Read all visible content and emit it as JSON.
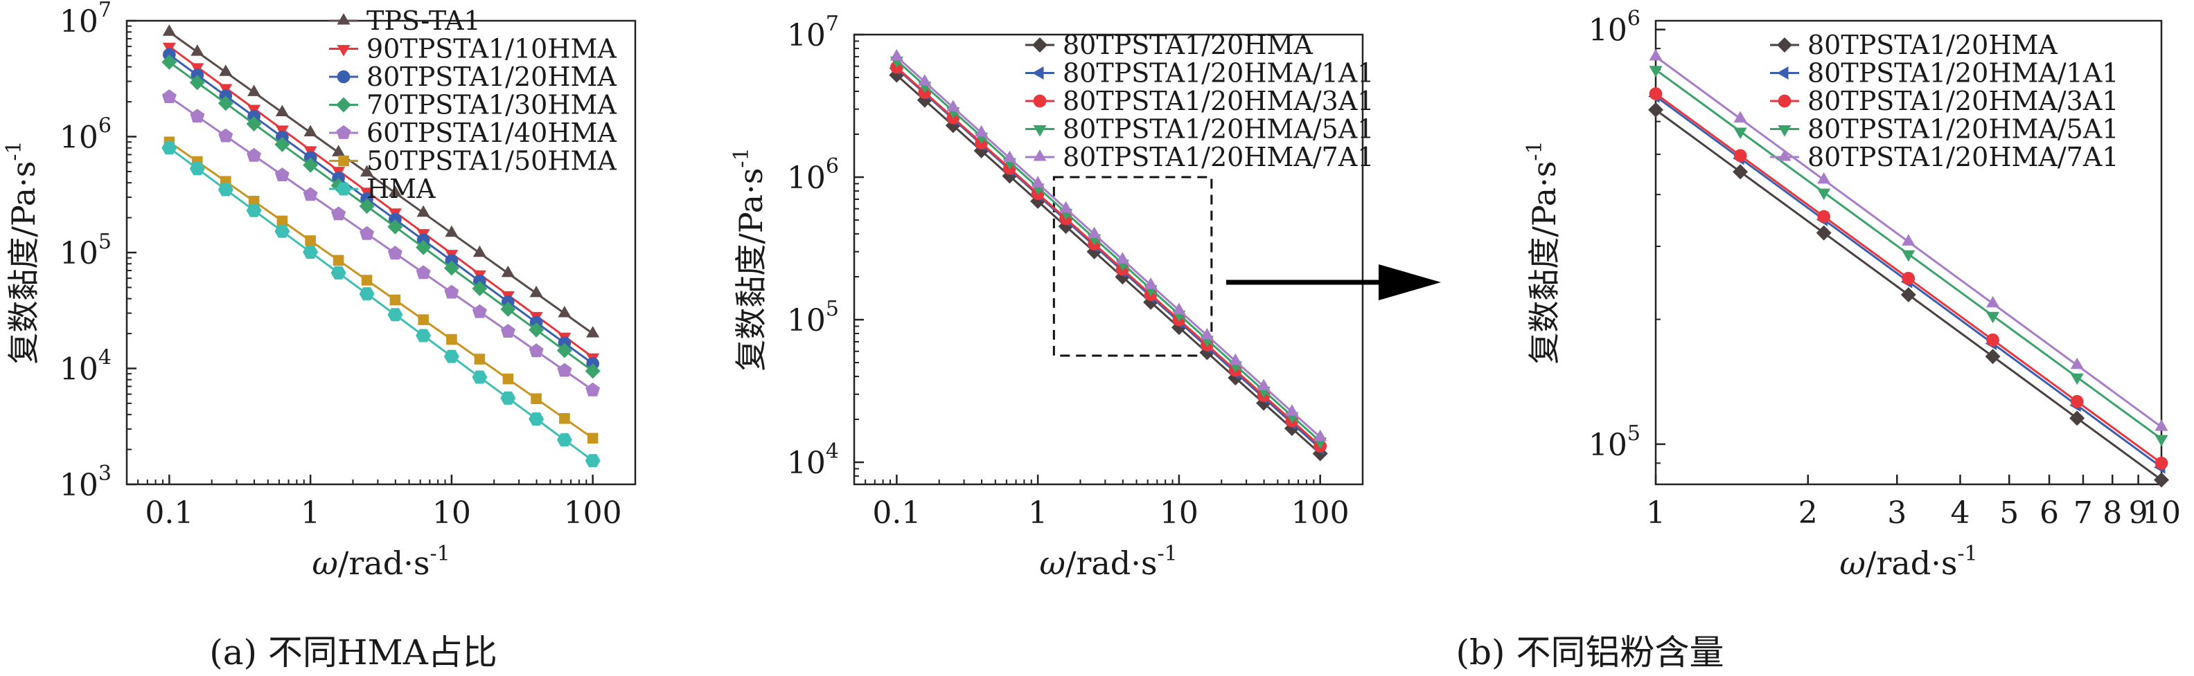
{
  "captions": {
    "a": "(a) 不同HMA占比",
    "b": "(b) 不同铝粉含量"
  },
  "chart_data": [
    {
      "id": "a",
      "type": "line",
      "xscale": "log",
      "yscale": "log",
      "xlim": [
        0.05,
        200
      ],
      "ylim": [
        1000,
        10000000
      ],
      "xticks": [
        0.1,
        1,
        10,
        100
      ],
      "xtick_labels": [
        "0.1",
        "1",
        "10",
        "100"
      ],
      "yticks": [
        1000,
        10000,
        100000,
        1000000,
        10000000
      ],
      "ytick_bases": [
        "10",
        "10",
        "10",
        "10",
        "10"
      ],
      "ytick_exps": [
        "3",
        "4",
        "5",
        "6",
        "7"
      ],
      "xlabel_symbol": "ω",
      "xlabel_rest": "/rad·s",
      "xlabel_exp": "-1",
      "ylabel": "复数黏度/Pa·s",
      "ylabel_exp": "-1",
      "legend_position": "top-right",
      "x": [
        0.1,
        0.158,
        0.251,
        0.398,
        0.631,
        1,
        1.58,
        2.51,
        3.98,
        6.31,
        10,
        15.8,
        25.1,
        39.8,
        63.1,
        100
      ],
      "series": [
        {
          "name": "TPS-TA1",
          "color": "#5a4a4a",
          "marker": "triangle-up",
          "start": 8000000,
          "end": 20000
        },
        {
          "name": "90TPSTA1/10HMA",
          "color": "#e8363c",
          "marker": "triangle-down",
          "start": 6000000,
          "end": 12500
        },
        {
          "name": "80TPSTA1/20HMA",
          "color": "#3a5fb0",
          "marker": "circle",
          "start": 5100000,
          "end": 11000
        },
        {
          "name": "70TPSTA1/30HMA",
          "color": "#3aa36a",
          "marker": "diamond",
          "start": 4400000,
          "end": 9500
        },
        {
          "name": "60TPSTA1/40HMA",
          "color": "#a87cc8",
          "marker": "pentagon",
          "start": 2200000,
          "end": 6500
        },
        {
          "name": "50TPSTA1/50HMA",
          "color": "#c8961e",
          "marker": "square",
          "start": 900000,
          "end": 2500
        },
        {
          "name": "HMA",
          "color": "#3ebfb6",
          "marker": "hexagon",
          "start": 800000,
          "end": 1600
        }
      ]
    },
    {
      "id": "b1",
      "type": "line",
      "xscale": "log",
      "yscale": "log",
      "xlim": [
        0.05,
        200
      ],
      "ylim": [
        7000,
        10000000
      ],
      "xticks": [
        0.1,
        1,
        10,
        100
      ],
      "xtick_labels": [
        "0.1",
        "1",
        "10",
        "100"
      ],
      "yticks": [
        10000,
        100000,
        1000000,
        10000000
      ],
      "ytick_bases": [
        "10",
        "10",
        "10",
        "10"
      ],
      "ytick_exps": [
        "4",
        "5",
        "6",
        "7"
      ],
      "xlabel_symbol": "ω",
      "xlabel_rest": "/rad·s",
      "xlabel_exp": "-1",
      "ylabel": "复数黏度/Pa·s",
      "ylabel_exp": "-1",
      "legend_position": "top-right",
      "zoom_box": {
        "x": [
          1.3,
          17
        ],
        "y": [
          56000,
          1000000
        ]
      },
      "x": [
        0.1,
        0.158,
        0.251,
        0.398,
        0.631,
        1,
        1.58,
        2.51,
        3.98,
        6.31,
        10,
        15.8,
        25.1,
        39.8,
        63.1,
        100
      ],
      "series": [
        {
          "name": "80TPSTA1/20HMA",
          "color": "#4a4040",
          "marker": "diamond",
          "start": 5200000,
          "end": 11500
        },
        {
          "name": "80TPSTA1/20HMA/1A1",
          "color": "#3a5fb0",
          "marker": "triangle-left",
          "start": 5800000,
          "end": 12500
        },
        {
          "name": "80TPSTA1/20HMA/3A1",
          "color": "#e8363c",
          "marker": "circle",
          "start": 5900000,
          "end": 13000
        },
        {
          "name": "80TPSTA1/20HMA/5A1",
          "color": "#3aa36a",
          "marker": "triangle-down",
          "start": 6600000,
          "end": 14000
        },
        {
          "name": "80TPSTA1/20HMA/7A1",
          "color": "#a87cc8",
          "marker": "triangle-up",
          "start": 7000000,
          "end": 15000
        }
      ]
    },
    {
      "id": "b2",
      "type": "line",
      "xscale": "log",
      "yscale": "log",
      "xlim": [
        1,
        10
      ],
      "ylim": [
        80000,
        1050000
      ],
      "xticks": [
        1,
        2,
        3,
        4,
        5,
        6,
        7,
        8,
        9,
        10
      ],
      "xtick_labels": [
        "1",
        "2",
        "3",
        "4",
        "5",
        "6",
        "7",
        "8",
        "9",
        "10"
      ],
      "yticks": [
        100000,
        1000000
      ],
      "ytick_bases": [
        "10",
        "10"
      ],
      "ytick_exps": [
        "5",
        "6"
      ],
      "xlabel_symbol": "ω",
      "xlabel_rest": "/rad·s",
      "xlabel_exp": "-1",
      "ylabel": "复数黏度/Pa·s",
      "ylabel_exp": "-1",
      "legend_position": "top-right",
      "x": [
        1,
        1.47,
        2.15,
        3.16,
        4.64,
        6.81,
        10
      ],
      "series": [
        {
          "name": "80TPSTA1/20HMA",
          "color": "#4a4040",
          "marker": "diamond",
          "start": 640000,
          "end": 82000
        },
        {
          "name": "80TPSTA1/20HMA/1A1",
          "color": "#3a5fb0",
          "marker": "triangle-left",
          "start": 690000,
          "end": 88000
        },
        {
          "name": "80TPSTA1/20HMA/3A1",
          "color": "#e8363c",
          "marker": "circle",
          "start": 700000,
          "end": 90000
        },
        {
          "name": "80TPSTA1/20HMA/5A1",
          "color": "#3aa36a",
          "marker": "triangle-down",
          "start": 800000,
          "end": 103000
        },
        {
          "name": "80TPSTA1/20HMA/7A1",
          "color": "#a87cc8",
          "marker": "triangle-up",
          "start": 860000,
          "end": 110000
        }
      ]
    }
  ]
}
